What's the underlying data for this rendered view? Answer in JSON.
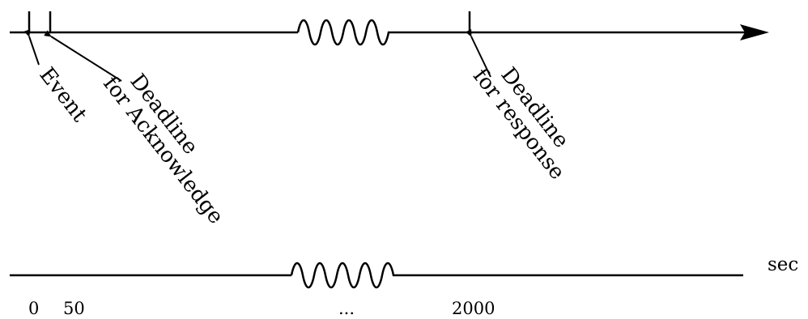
{
  "annotations": {
    "event": "Event",
    "deadline_ack_line1": "Deadline",
    "deadline_ack_line2": "for Acknowledge",
    "deadline_resp_line1": "Deadline",
    "deadline_resp_line2": "for response"
  },
  "scale": {
    "unit": "sec",
    "ticks": [
      "0",
      "50",
      "...",
      "2000"
    ]
  }
}
